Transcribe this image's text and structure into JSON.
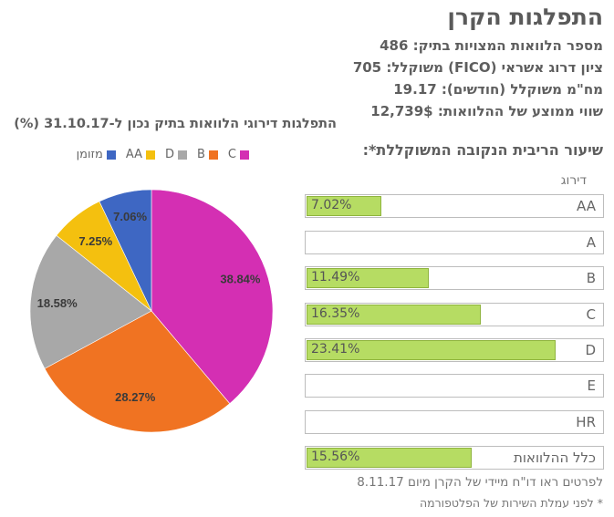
{
  "title": "התפלגות הקרן",
  "stats": {
    "loans": "מספר הלוואות המצויות בתיק: 486",
    "fico": "ציון דרוג אשראי (FICO) משוקלל: 705",
    "term": "מח\"מ משוקלל (חודשים): 19.17",
    "avg": "שווי ממוצע של ההלוואות: 12,739$"
  },
  "pie_title": "התפלגות דירוגי הלוואות בתיק נכון ל-31.10.17 (%)",
  "chart_data": {
    "type": "pie",
    "title": "התפלגות דירוגי הלוואות בתיק נכון ל-31.10.17 (%)",
    "slices": [
      {
        "name": "C",
        "value": 38.84,
        "label": "38.84%",
        "color": "#d42fb3"
      },
      {
        "name": "B",
        "value": 28.27,
        "label": "28.27%",
        "color": "#f07322"
      },
      {
        "name": "D",
        "value": 18.58,
        "label": "18.58%",
        "color": "#a8a8a8"
      },
      {
        "name": "AA",
        "value": 7.25,
        "label": "7.25%",
        "color": "#f4c00f"
      },
      {
        "name": "מזומן",
        "value": 7.06,
        "label": "7.06%",
        "color": "#3e67c3"
      }
    ],
    "legend": [
      "C",
      "B",
      "D",
      "AA",
      "מזומן"
    ]
  },
  "rates_title": "שיעור הריבית הנקובה המשוקללת*:",
  "grade_header": "דירוג",
  "rows": [
    {
      "grade": "AA",
      "pct": "7.02%",
      "value": 7.02
    },
    {
      "grade": "A",
      "pct": "",
      "value": 0
    },
    {
      "grade": "B",
      "pct": "11.49%",
      "value": 11.49
    },
    {
      "grade": "C",
      "pct": "16.35%",
      "value": 16.35
    },
    {
      "grade": "D",
      "pct": "23.41%",
      "value": 23.41
    },
    {
      "grade": "E",
      "pct": "",
      "value": 0
    },
    {
      "grade": "HR",
      "pct": "",
      "value": 0
    },
    {
      "grade": "כלל ההלוואות",
      "pct": "15.56%",
      "value": 15.56
    }
  ],
  "footnote1": "לפרטים ראו דו\"ח מיידי של הקרן מיום 8.11.17",
  "footnote2": "* לפני עמלת השירות של הפלטפורמה",
  "colors": {
    "bar": "#b6dc63"
  }
}
